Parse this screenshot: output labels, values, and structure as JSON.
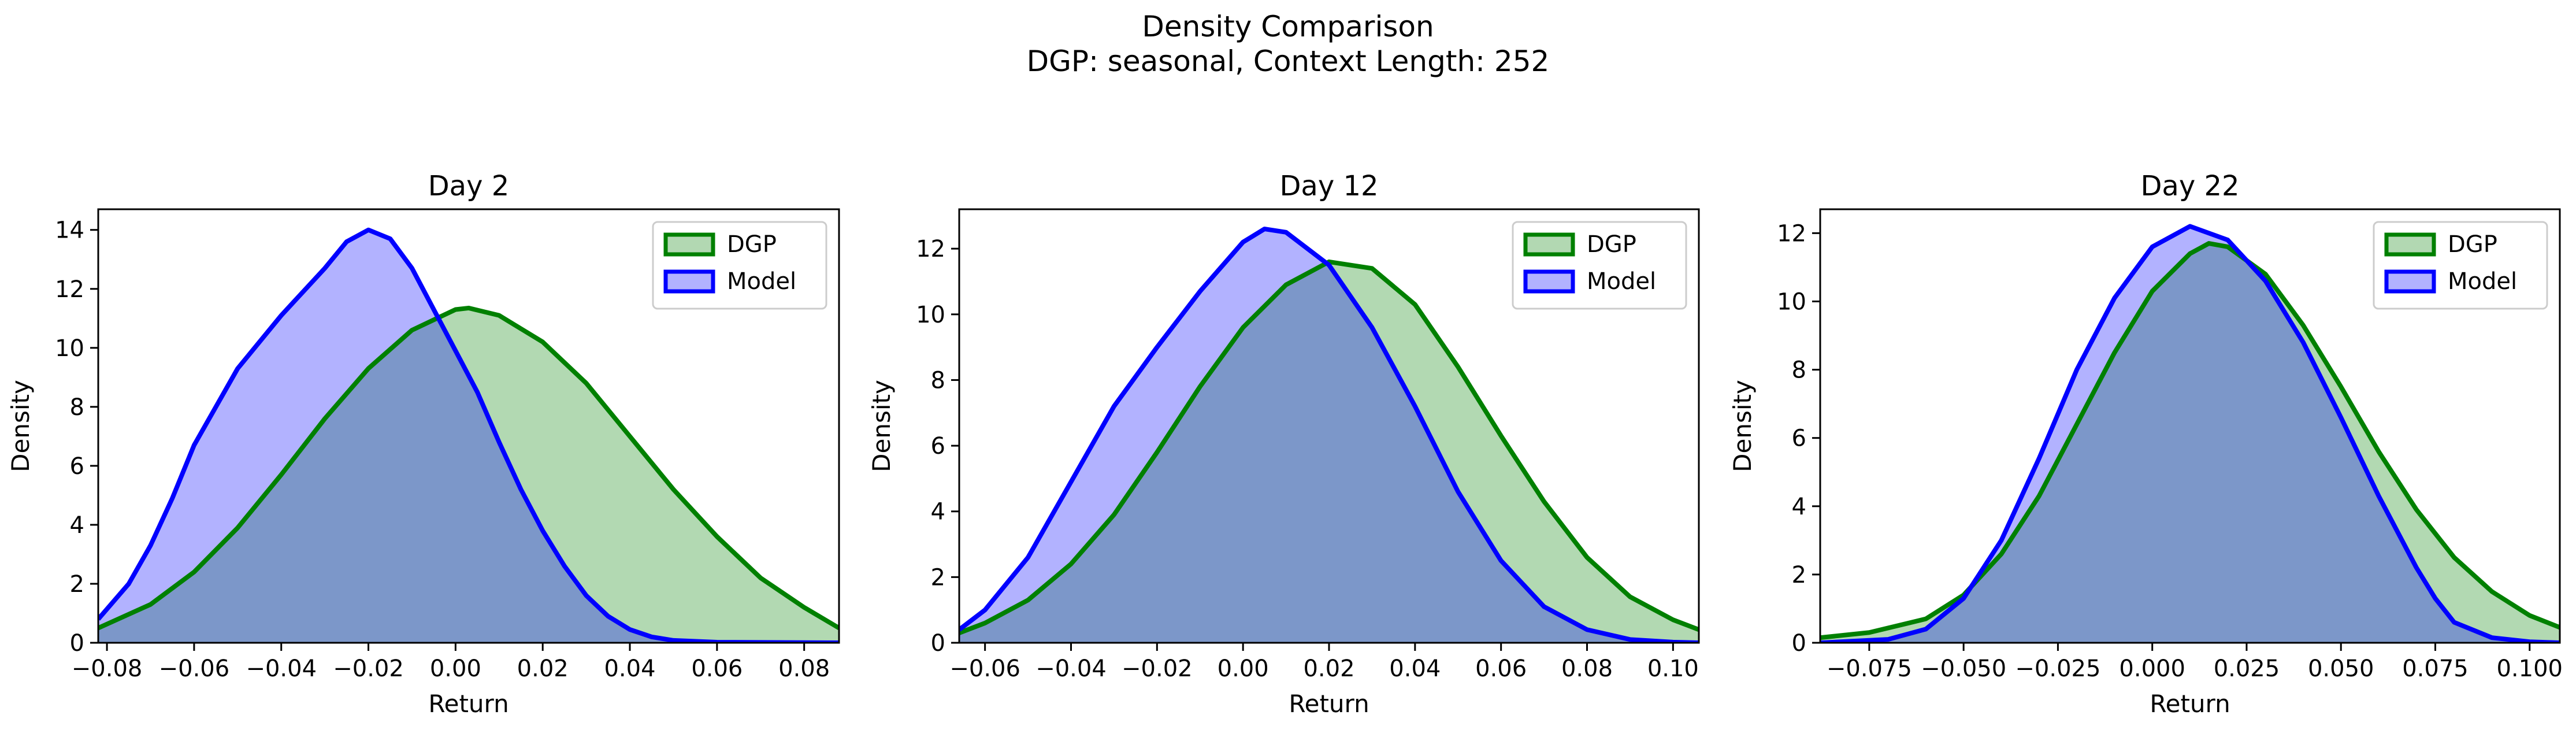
{
  "suptitle": {
    "line1": "Density Comparison",
    "line2": "DGP: seasonal, Context Length: 252"
  },
  "colors": {
    "dgp_line": "#008000",
    "dgp_fill": "#b2d8b2",
    "model_line": "#0000ff",
    "model_fill": "#b2b2ff",
    "overlap_fill": "#7f97c6"
  },
  "chart_data": [
    {
      "type": "area",
      "title": "Day 2",
      "xlabel": "Return",
      "ylabel": "Density",
      "xlim": [
        -0.082,
        0.088
      ],
      "ylim": [
        0,
        14.7
      ],
      "xticks": [
        -0.08,
        -0.06,
        -0.04,
        -0.02,
        0.0,
        0.02,
        0.04,
        0.06,
        0.08
      ],
      "xtick_labels": [
        "−0.08",
        "−0.06",
        "−0.04",
        "−0.02",
        "0.00",
        "0.02",
        "0.04",
        "0.06",
        "0.08"
      ],
      "yticks": [
        0,
        2,
        4,
        6,
        8,
        10,
        12,
        14
      ],
      "ytick_labels": [
        "0",
        "2",
        "4",
        "6",
        "8",
        "10",
        "12",
        "14"
      ],
      "legend": {
        "position": "top-right",
        "entries": [
          "DGP",
          "Model"
        ]
      },
      "series": [
        {
          "name": "DGP",
          "points": [
            [
              -0.082,
              0.5
            ],
            [
              -0.07,
              1.3
            ],
            [
              -0.06,
              2.4
            ],
            [
              -0.05,
              3.9
            ],
            [
              -0.04,
              5.7
            ],
            [
              -0.03,
              7.6
            ],
            [
              -0.02,
              9.3
            ],
            [
              -0.01,
              10.6
            ],
            [
              0.0,
              11.3
            ],
            [
              0.003,
              11.35
            ],
            [
              0.01,
              11.1
            ],
            [
              0.02,
              10.2
            ],
            [
              0.03,
              8.8
            ],
            [
              0.04,
              7.0
            ],
            [
              0.05,
              5.2
            ],
            [
              0.06,
              3.6
            ],
            [
              0.07,
              2.2
            ],
            [
              0.08,
              1.2
            ],
            [
              0.088,
              0.5
            ]
          ]
        },
        {
          "name": "Model",
          "points": [
            [
              -0.082,
              0.8
            ],
            [
              -0.075,
              2.0
            ],
            [
              -0.07,
              3.3
            ],
            [
              -0.065,
              4.9
            ],
            [
              -0.06,
              6.7
            ],
            [
              -0.05,
              9.3
            ],
            [
              -0.04,
              11.1
            ],
            [
              -0.03,
              12.7
            ],
            [
              -0.025,
              13.6
            ],
            [
              -0.02,
              14.0
            ],
            [
              -0.015,
              13.7
            ],
            [
              -0.01,
              12.7
            ],
            [
              -0.005,
              11.3
            ],
            [
              0.0,
              9.9
            ],
            [
              0.005,
              8.5
            ],
            [
              0.01,
              6.8
            ],
            [
              0.015,
              5.2
            ],
            [
              0.02,
              3.8
            ],
            [
              0.025,
              2.6
            ],
            [
              0.03,
              1.6
            ],
            [
              0.035,
              0.9
            ],
            [
              0.04,
              0.45
            ],
            [
              0.045,
              0.2
            ],
            [
              0.05,
              0.08
            ],
            [
              0.06,
              0.02
            ],
            [
              0.088,
              0
            ]
          ]
        }
      ]
    },
    {
      "type": "area",
      "title": "Day 12",
      "xlabel": "Return",
      "ylabel": "Density",
      "xlim": [
        -0.066,
        0.106
      ],
      "ylim": [
        0,
        13.2
      ],
      "xticks": [
        -0.06,
        -0.04,
        -0.02,
        0.0,
        0.02,
        0.04,
        0.06,
        0.08,
        0.1
      ],
      "xtick_labels": [
        "−0.06",
        "−0.04",
        "−0.02",
        "0.00",
        "0.02",
        "0.04",
        "0.06",
        "0.08",
        "0.10"
      ],
      "yticks": [
        0,
        2,
        4,
        6,
        8,
        10,
        12
      ],
      "ytick_labels": [
        "0",
        "2",
        "4",
        "6",
        "8",
        "10",
        "12"
      ],
      "legend": {
        "position": "top-right",
        "entries": [
          "DGP",
          "Model"
        ]
      },
      "series": [
        {
          "name": "DGP",
          "points": [
            [
              -0.066,
              0.3
            ],
            [
              -0.06,
              0.6
            ],
            [
              -0.05,
              1.3
            ],
            [
              -0.04,
              2.4
            ],
            [
              -0.03,
              3.9
            ],
            [
              -0.02,
              5.8
            ],
            [
              -0.01,
              7.8
            ],
            [
              0.0,
              9.6
            ],
            [
              0.01,
              10.9
            ],
            [
              0.02,
              11.6
            ],
            [
              0.03,
              11.4
            ],
            [
              0.04,
              10.3
            ],
            [
              0.05,
              8.4
            ],
            [
              0.06,
              6.3
            ],
            [
              0.07,
              4.3
            ],
            [
              0.08,
              2.6
            ],
            [
              0.09,
              1.4
            ],
            [
              0.1,
              0.7
            ],
            [
              0.106,
              0.4
            ]
          ]
        },
        {
          "name": "Model",
          "points": [
            [
              -0.066,
              0.4
            ],
            [
              -0.06,
              1.0
            ],
            [
              -0.05,
              2.6
            ],
            [
              -0.04,
              4.9
            ],
            [
              -0.03,
              7.2
            ],
            [
              -0.02,
              9.0
            ],
            [
              -0.01,
              10.7
            ],
            [
              0.0,
              12.2
            ],
            [
              0.005,
              12.6
            ],
            [
              0.01,
              12.5
            ],
            [
              0.02,
              11.5
            ],
            [
              0.03,
              9.6
            ],
            [
              0.04,
              7.2
            ],
            [
              0.05,
              4.6
            ],
            [
              0.06,
              2.5
            ],
            [
              0.07,
              1.1
            ],
            [
              0.08,
              0.4
            ],
            [
              0.09,
              0.1
            ],
            [
              0.1,
              0.02
            ],
            [
              0.106,
              0
            ]
          ]
        }
      ]
    },
    {
      "type": "area",
      "title": "Day 22",
      "xlabel": "Return",
      "ylabel": "Density",
      "xlim": [
        -0.088,
        0.108
      ],
      "ylim": [
        0,
        12.7
      ],
      "xticks": [
        -0.075,
        -0.05,
        -0.025,
        0.0,
        0.025,
        0.05,
        0.075,
        0.1
      ],
      "xtick_labels": [
        "−0.075",
        "−0.050",
        "−0.025",
        "0.000",
        "0.025",
        "0.050",
        "0.075",
        "0.100"
      ],
      "yticks": [
        0,
        2,
        4,
        6,
        8,
        10,
        12
      ],
      "ytick_labels": [
        "0",
        "2",
        "4",
        "6",
        "8",
        "10",
        "12"
      ],
      "legend": {
        "position": "top-right",
        "entries": [
          "DGP",
          "Model"
        ]
      },
      "series": [
        {
          "name": "DGP",
          "points": [
            [
              -0.088,
              0.15
            ],
            [
              -0.075,
              0.3
            ],
            [
              -0.06,
              0.7
            ],
            [
              -0.05,
              1.4
            ],
            [
              -0.04,
              2.6
            ],
            [
              -0.03,
              4.3
            ],
            [
              -0.02,
              6.4
            ],
            [
              -0.01,
              8.5
            ],
            [
              0.0,
              10.3
            ],
            [
              0.01,
              11.4
            ],
            [
              0.015,
              11.7
            ],
            [
              0.02,
              11.6
            ],
            [
              0.03,
              10.8
            ],
            [
              0.04,
              9.3
            ],
            [
              0.05,
              7.5
            ],
            [
              0.06,
              5.6
            ],
            [
              0.07,
              3.9
            ],
            [
              0.08,
              2.5
            ],
            [
              0.09,
              1.5
            ],
            [
              0.1,
              0.8
            ],
            [
              0.108,
              0.45
            ]
          ]
        },
        {
          "name": "Model",
          "points": [
            [
              -0.088,
              0
            ],
            [
              -0.07,
              0.1
            ],
            [
              -0.06,
              0.4
            ],
            [
              -0.05,
              1.3
            ],
            [
              -0.04,
              3.0
            ],
            [
              -0.03,
              5.4
            ],
            [
              -0.02,
              8.0
            ],
            [
              -0.01,
              10.1
            ],
            [
              0.0,
              11.6
            ],
            [
              0.01,
              12.2
            ],
            [
              0.02,
              11.8
            ],
            [
              0.03,
              10.6
            ],
            [
              0.04,
              8.8
            ],
            [
              0.05,
              6.6
            ],
            [
              0.06,
              4.3
            ],
            [
              0.07,
              2.2
            ],
            [
              0.075,
              1.3
            ],
            [
              0.08,
              0.6
            ],
            [
              0.09,
              0.15
            ],
            [
              0.1,
              0.03
            ],
            [
              0.108,
              0
            ]
          ]
        }
      ]
    }
  ]
}
